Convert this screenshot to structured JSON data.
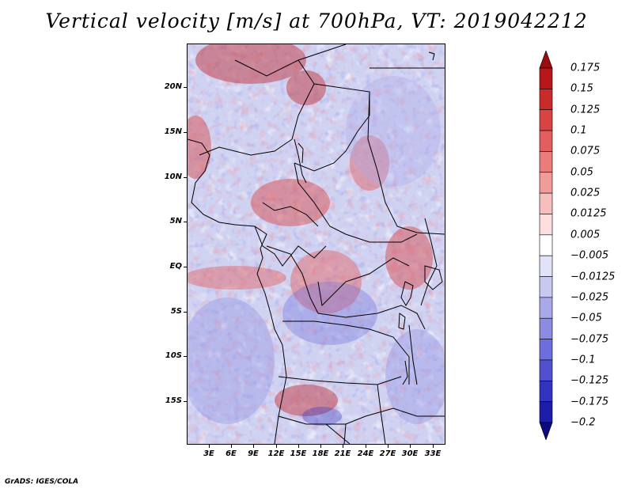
{
  "title": "Vertical velocity [m/s] at 700hPa, VT: 2019042212",
  "map": {
    "variable": "Vertical velocity",
    "units": "m/s",
    "level": "700hPa",
    "valid_time": "2019042212",
    "lat_labels": [
      "20N",
      "15N",
      "10N",
      "5N",
      "EQ",
      "5S",
      "10S",
      "15S"
    ],
    "lon_labels": [
      "3E",
      "6E",
      "9E",
      "12E",
      "15E",
      "18E",
      "21E",
      "24E",
      "27E",
      "30E",
      "33E"
    ]
  },
  "colorbar": {
    "labels": [
      "0.175",
      "0.15",
      "0.125",
      "0.1",
      "0.075",
      "0.05",
      "0.025",
      "0.0125",
      "0.005",
      "−0.005",
      "−0.0125",
      "−0.025",
      "−0.05",
      "−0.075",
      "−0.1",
      "−0.125",
      "−0.175",
      "−0.2"
    ],
    "colors": [
      "#9e0b0e",
      "#b7161a",
      "#c92a2a",
      "#d94343",
      "#e35e5e",
      "#eb7c7c",
      "#f29b9b",
      "#f7bebe",
      "#fcdede",
      "#ffffff",
      "#e2e2f8",
      "#c8c8f1",
      "#a9a9ea",
      "#8b8be2",
      "#6d6ddb",
      "#5050d0",
      "#3333c2",
      "#1d1da8",
      "#0b0b80"
    ]
  },
  "footer": "GrADS: IGES/COLA"
}
